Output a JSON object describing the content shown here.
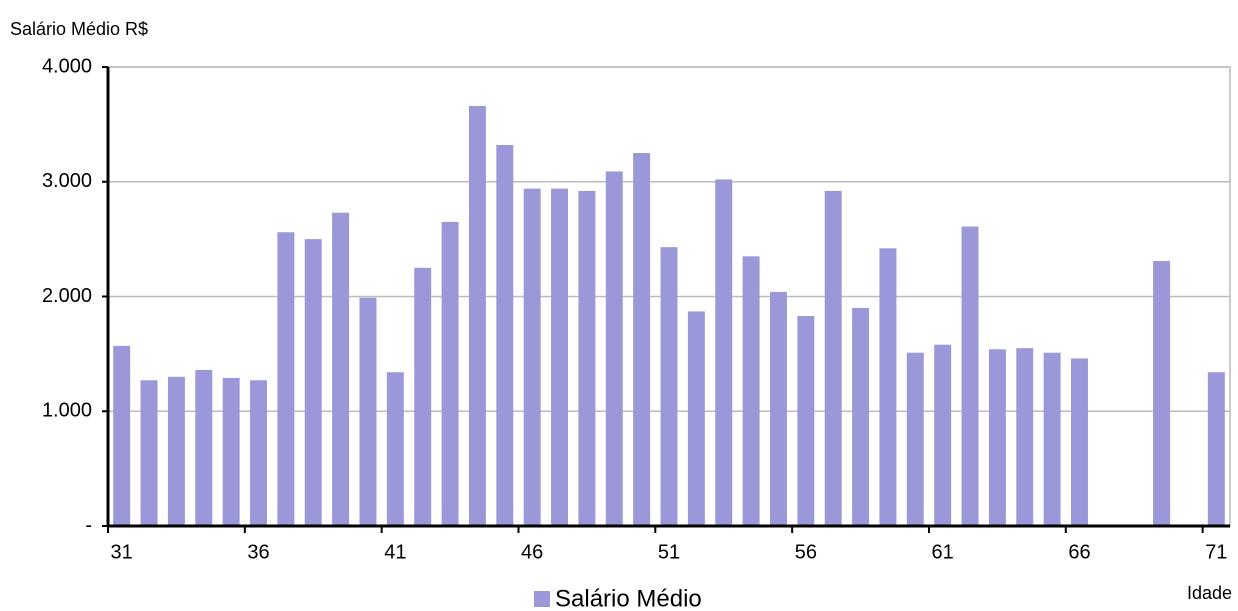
{
  "chart_data": {
    "type": "bar",
    "y_label": "Salário Médio R$",
    "x_label": "Idade",
    "x": [
      31,
      32,
      33,
      34,
      35,
      36,
      37,
      38,
      39,
      40,
      41,
      42,
      43,
      44,
      45,
      46,
      47,
      48,
      49,
      50,
      51,
      52,
      53,
      54,
      55,
      56,
      57,
      58,
      59,
      60,
      61,
      62,
      63,
      64,
      65,
      66,
      67,
      68,
      69,
      70,
      71
    ],
    "series": [
      {
        "name": "Salário Médio",
        "color": "#9a98d8",
        "values": [
          1570,
          1270,
          1300,
          1360,
          1290,
          1270,
          2560,
          2500,
          2730,
          1990,
          1340,
          2250,
          2650,
          3660,
          3320,
          2940,
          2940,
          2920,
          3090,
          3250,
          2430,
          1870,
          3020,
          2350,
          2040,
          1830,
          2920,
          1900,
          2420,
          1510,
          1580,
          2610,
          1540,
          1550,
          1510,
          1460,
          null,
          null,
          2310,
          null,
          1340
        ]
      }
    ],
    "xlim": [
      30.5,
      71.5
    ],
    "xticks": [
      31,
      36,
      41,
      46,
      51,
      56,
      61,
      66,
      71
    ],
    "ylim": [
      0,
      4000
    ],
    "yticks": [
      {
        "value": 0,
        "label": "-"
      },
      {
        "value": 1000,
        "label": "1.000"
      },
      {
        "value": 2000,
        "label": "2.000"
      },
      {
        "value": 3000,
        "label": "3.000"
      },
      {
        "value": 4000,
        "label": "4.000"
      }
    ],
    "grid": true
  }
}
